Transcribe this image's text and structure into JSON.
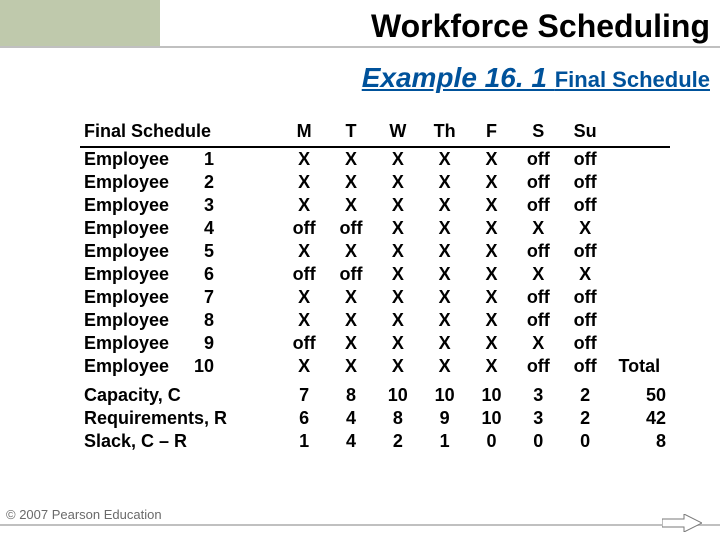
{
  "title": "Workforce Scheduling",
  "subtitle": {
    "main": "Example 16. 1 ",
    "small": "Final Schedule"
  },
  "table": {
    "header_label": "Final Schedule",
    "days": [
      "M",
      "T",
      "W",
      "Th",
      "F",
      "S",
      "Su"
    ],
    "total_label": "Total",
    "employees": [
      {
        "name": "Employee",
        "num": "1",
        "cells": [
          "X",
          "X",
          "X",
          "X",
          "X",
          "off",
          "off"
        ]
      },
      {
        "name": "Employee",
        "num": "2",
        "cells": [
          "X",
          "X",
          "X",
          "X",
          "X",
          "off",
          "off"
        ]
      },
      {
        "name": "Employee",
        "num": "3",
        "cells": [
          "X",
          "X",
          "X",
          "X",
          "X",
          "off",
          "off"
        ]
      },
      {
        "name": "Employee",
        "num": "4",
        "cells": [
          "off",
          "off",
          "X",
          "X",
          "X",
          "X",
          "X"
        ]
      },
      {
        "name": "Employee",
        "num": "5",
        "cells": [
          "X",
          "X",
          "X",
          "X",
          "X",
          "off",
          "off"
        ]
      },
      {
        "name": "Employee",
        "num": "6",
        "cells": [
          "off",
          "off",
          "X",
          "X",
          "X",
          "X",
          "X"
        ]
      },
      {
        "name": "Employee",
        "num": "7",
        "cells": [
          "X",
          "X",
          "X",
          "X",
          "X",
          "off",
          "off"
        ]
      },
      {
        "name": "Employee",
        "num": "8",
        "cells": [
          "X",
          "X",
          "X",
          "X",
          "X",
          "off",
          "off"
        ]
      },
      {
        "name": "Employee",
        "num": "9",
        "cells": [
          "off",
          "X",
          "X",
          "X",
          "X",
          "X",
          "off"
        ]
      },
      {
        "name": "Employee",
        "num": "10",
        "cells": [
          "X",
          "X",
          "X",
          "X",
          "X",
          "off",
          "off"
        ]
      }
    ],
    "summary": [
      {
        "label": "Capacity, C",
        "cells": [
          "7",
          "8",
          "10",
          "10",
          "10",
          "3",
          "2"
        ],
        "total": "50"
      },
      {
        "label": "Requirements, R",
        "cells": [
          "6",
          "4",
          "8",
          "9",
          "10",
          "3",
          "2"
        ],
        "total": "42"
      },
      {
        "label": "Slack, C – R",
        "cells": [
          "1",
          "4",
          "2",
          "1",
          "0",
          "0",
          "0"
        ],
        "total": "8"
      }
    ]
  },
  "footer": "© 2007 Pearson Education",
  "colors": {
    "accent_bg": "#bfc9ac",
    "rule": "#c0c0c0",
    "subtitle": "#00529b",
    "arrow_fill": "#ffffff",
    "arrow_stroke": "#7a7a7a"
  }
}
